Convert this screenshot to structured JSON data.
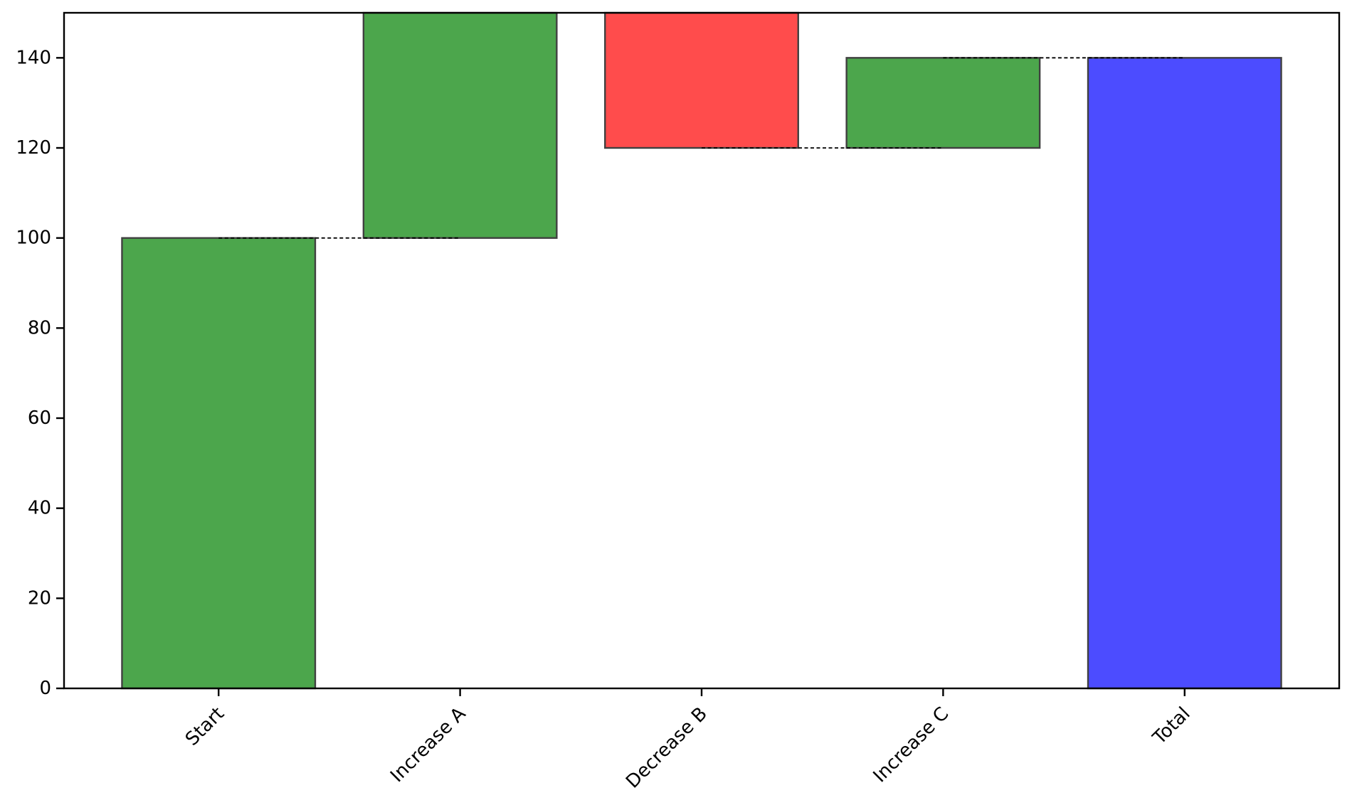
{
  "figure": {
    "background": "#ffffff"
  },
  "chart_data": {
    "type": "bar",
    "subtype": "waterfall",
    "title": "",
    "xlabel": "",
    "ylabel": "",
    "categories": [
      "Start",
      "Increase A",
      "Decrease B",
      "Increase C",
      "Total"
    ],
    "values": [
      100,
      50,
      -30,
      20,
      140
    ],
    "cumulative": [
      100,
      150,
      120,
      140,
      140
    ],
    "bars": [
      {
        "label": "Start",
        "start": 0,
        "end": 100,
        "color": "#4CA64C"
      },
      {
        "label": "Increase A",
        "start": 100,
        "end": 150,
        "color": "#4CA64C"
      },
      {
        "label": "Decrease B",
        "start": 150,
        "end": 120,
        "color": "#FF4C4C"
      },
      {
        "label": "Increase C",
        "start": 120,
        "end": 140,
        "color": "#4CA64C"
      },
      {
        "label": "Total",
        "start": 0,
        "end": 140,
        "color": "#4C4CFF"
      }
    ],
    "connectors": [
      {
        "level": 100,
        "from": 0,
        "to": 1
      },
      {
        "level": 150,
        "from": 1,
        "to": 2
      },
      {
        "level": 120,
        "from": 2,
        "to": 3
      },
      {
        "level": 140,
        "from": 3,
        "to": 4
      }
    ],
    "yticks": [
      0,
      20,
      40,
      60,
      80,
      100,
      120,
      140
    ],
    "ylim": [
      0,
      150
    ],
    "xlim": [
      -0.64,
      4.64
    ],
    "bar_width": 0.8,
    "grid": false,
    "legend": null,
    "colors": {
      "increase": "#4CA64C",
      "decrease": "#FF4C4C",
      "total": "#4C4CFF",
      "bar_edge": "#404040",
      "axis": "#000000",
      "connector": "#000000"
    }
  }
}
